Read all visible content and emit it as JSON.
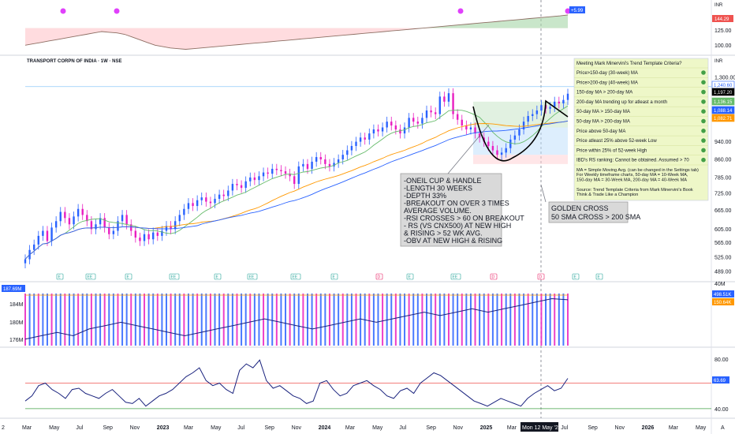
{
  "symbol_title": "TRANSPORT CORPN OF INDIA · 1W · NSE",
  "currency": "INR",
  "rs_panel": {
    "ticks": [
      "144.29",
      "125.00",
      "100.00"
    ],
    "last_label": "144.29",
    "pct_label": "+5.99",
    "color_up": "#26a69a",
    "color_down": "#ef5350"
  },
  "price_panel": {
    "ticks": [
      "1,300.00",
      "940.00",
      "860.00",
      "785.00",
      "725.00",
      "665.00",
      "605.00",
      "565.00",
      "525.00",
      "489.00"
    ],
    "labels": [
      {
        "text": "1,240.60",
        "color": "#2962ff",
        "fill": false
      },
      {
        "text": "1,197.20",
        "color": "#000000",
        "fill": true
      },
      {
        "text": "1,136.15",
        "color": "#66bb6a",
        "fill": true
      },
      {
        "text": "1,088.14",
        "color": "#2962ff",
        "fill": true
      },
      {
        "text": "1,082.71",
        "color": "#ff9800",
        "fill": true
      }
    ],
    "markers": [
      "E",
      "EE",
      "E",
      "EE",
      "E",
      "EE",
      "EE",
      "E",
      "D",
      "E",
      "EE",
      "D",
      "D",
      "E",
      "E"
    ]
  },
  "volume_panel": {
    "ticks": [
      "40M",
      "184M",
      "180M",
      "176M"
    ],
    "left_label": "187.69M",
    "labels": [
      {
        "text": "498.51K",
        "color": "#2962ff"
      },
      {
        "text": "150.64K",
        "color": "#ff9800"
      }
    ]
  },
  "rsi_panel": {
    "ticks": [
      "80.00",
      "40.00"
    ],
    "last_label": "63.69",
    "overbought": 60,
    "oversold": 40
  },
  "x_axis": {
    "labels": [
      "Mar",
      "May",
      "Jul",
      "Sep",
      "Nov",
      "2023",
      "Mar",
      "May",
      "Jul",
      "Sep",
      "Nov",
      "2024",
      "Mar",
      "May",
      "Jul",
      "Sep",
      "Nov",
      "2025",
      "Mar",
      "Mon 12 May '25",
      "Jul",
      "Sep",
      "Nov",
      "2026",
      "Mar",
      "May"
    ],
    "left_stub": "2",
    "right_stub": "A"
  },
  "trend_template": {
    "title": "Meeting Mark Minervini's Trend Template Criteria?",
    "rows": [
      "Price>150-day (30-week) MA",
      "Price>200-day (40-week) MA",
      "150-day MA > 200-day MA",
      "200-day MA trending up for atleast a month",
      "50-day MA > 150-day MA",
      "50-day MA > 200-day MA",
      "Price above 50-day MA",
      "Price atleast 25% above 52-week Low",
      "Price within 25% of 52-week High",
      "IBD's RS ranking: Cannot be obtained. Assumed > 70"
    ],
    "notes": [
      "MA = Simple Moving Avg. (can be changed in the Settings tab)",
      "For Weekly timeframe charts, 50-day MA = 10-Week MA,",
      "150-day MA = 30-Week MA, 200-day MA = 40-Week MA",
      "",
      "Source: Trend Template Criteria from Mark Minervini's Book",
      "Think & Trade Like a Champion"
    ],
    "dot_color": "#43a047",
    "bg": "#eef7c8"
  },
  "annotations": {
    "cup_handle": [
      "-ONEIL CUP & HANDLE",
      "-LENGTH 30 WEEKS",
      "-DEPTH 33%",
      "-BREAKOUT ON OVER 3 TIMES",
      "  AVERAGE VOLUME.",
      "-RSI CROSSES > 60 ON BREAKOUT",
      "- RS (VS CNX500) AT NEW HIGH",
      "  & RISING > 52 WK AVG.",
      "-OBV AT NEW HIGH & RISING"
    ],
    "golden_cross": [
      "GOLDEN CROSS",
      "50 SMA CROSS > 200 SMA"
    ]
  },
  "chart_data": {
    "type": "candlestick",
    "title": "TRANSPORT CORPN OF INDIA · 1W · NSE",
    "ylabel": "INR",
    "x_range": [
      "2022-03",
      "2025-07"
    ],
    "ylim": [
      489,
      1300
    ],
    "log_scale": true,
    "closes": [
      520,
      545,
      560,
      585,
      600,
      570,
      610,
      630,
      660,
      640,
      620,
      645,
      670,
      650,
      630,
      605,
      620,
      640,
      610,
      590,
      600,
      630,
      650,
      620,
      600,
      580,
      570,
      590,
      575,
      595,
      585,
      600,
      615,
      605,
      630,
      650,
      670,
      690,
      680,
      700,
      710,
      695,
      690,
      705,
      720,
      715,
      735,
      760,
      755,
      745,
      770,
      785,
      775,
      790,
      805,
      800,
      820,
      815,
      810,
      800,
      790,
      760,
      830,
      840,
      820,
      850,
      870,
      860,
      840,
      830,
      845,
      860,
      880,
      900,
      920,
      940,
      960,
      950,
      980,
      1000,
      990,
      1010,
      1040,
      1020,
      1000,
      980,
      1010,
      1060,
      1040,
      1030,
      1060,
      1100,
      1090,
      1080,
      1180,
      1150,
      1200,
      1080,
      1050,
      1020,
      1000,
      1010,
      980,
      960,
      940,
      920,
      900,
      880,
      890,
      910,
      950,
      970,
      1000,
      1040,
      1070,
      1080,
      1100,
      1130,
      1110,
      1120,
      1150,
      1140,
      1160,
      1197
    ],
    "rs_series": [
      100,
      102,
      104,
      106,
      108,
      110,
      112,
      114,
      116,
      118,
      120,
      119,
      118,
      116,
      112,
      108,
      104,
      100,
      98,
      96,
      95,
      94,
      95,
      96,
      97,
      98,
      99,
      100,
      101,
      102,
      103,
      104,
      105,
      106,
      107,
      108,
      109,
      110,
      111,
      112,
      113,
      114,
      115,
      116,
      117,
      118,
      119,
      120,
      121,
      122,
      123,
      124,
      125,
      126,
      127,
      128,
      129,
      130,
      131,
      132,
      133,
      134,
      135,
      136,
      137,
      138,
      139,
      140,
      141,
      142,
      143,
      144.29
    ],
    "rs_ma": 125,
    "rsi_series": [
      46,
      50,
      58,
      60,
      55,
      52,
      48,
      55,
      56,
      52,
      50,
      48,
      52,
      55,
      50,
      45,
      44,
      48,
      42,
      46,
      50,
      52,
      55,
      60,
      65,
      68,
      72,
      62,
      58,
      60,
      55,
      52,
      70,
      75,
      72,
      78,
      62,
      56,
      58,
      54,
      50,
      48,
      44,
      46,
      60,
      62,
      55,
      50,
      52,
      58,
      60,
      62,
      58,
      55,
      50,
      48,
      54,
      56,
      52,
      60,
      64,
      68,
      66,
      62,
      58,
      54,
      50,
      46,
      44,
      42,
      45,
      48,
      46,
      44,
      42,
      48,
      52,
      55,
      58,
      54,
      56,
      63.69
    ],
    "rsi_ylim": [
      35,
      85
    ],
    "volume_ma_label": "187.69M",
    "obv_series": [
      176,
      177,
      178,
      177,
      179,
      180,
      181,
      180,
      179,
      178,
      177,
      178,
      179,
      180,
      181,
      182,
      181,
      180,
      179,
      180,
      181,
      182,
      181,
      182,
      183,
      184,
      183,
      184,
      185,
      184,
      185,
      186,
      187,
      188,
      187.69
    ],
    "annotation_markers": {
      "golden_cross_date": "Mon 12 May '25"
    }
  }
}
